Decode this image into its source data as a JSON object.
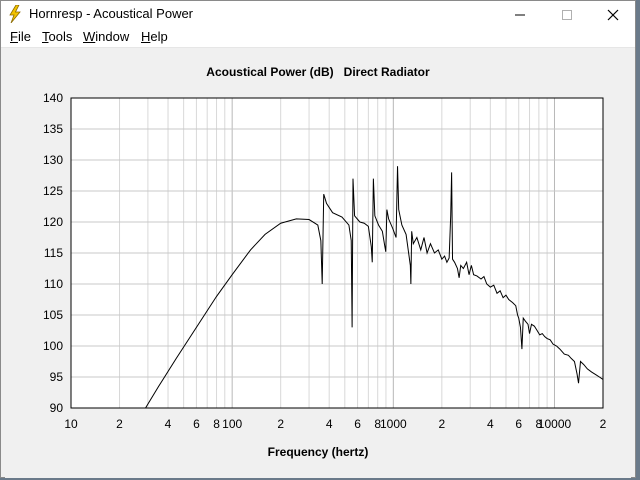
{
  "window": {
    "title": "Hornresp - Acoustical Power"
  },
  "titlebar": {
    "minimize": "—",
    "maximize": "☐",
    "close": "✕"
  },
  "menu": [
    {
      "label": "File",
      "accel": "F",
      "rest": "ile"
    },
    {
      "label": "Tools",
      "accel": "T",
      "rest": "ools"
    },
    {
      "label": "Window",
      "accel": "W",
      "rest": "indow"
    },
    {
      "label": "Help",
      "accel": "H",
      "rest": "elp"
    }
  ],
  "chart_data": {
    "type": "line",
    "title": "Acoustical Power (dB)   Direct Radiator",
    "xlabel": "Frequency (hertz)",
    "ylabel": "",
    "xscale": "log",
    "xlim": [
      10,
      20000
    ],
    "ylim": [
      90,
      140
    ],
    "grid": true,
    "y_ticks": [
      90,
      95,
      100,
      105,
      110,
      115,
      120,
      125,
      130,
      135,
      140
    ],
    "x_tick_labels": [
      {
        "value": 10,
        "label": "10"
      },
      {
        "value": 20,
        "label": "2"
      },
      {
        "value": 40,
        "label": "4"
      },
      {
        "value": 60,
        "label": "6"
      },
      {
        "value": 80,
        "label": "8"
      },
      {
        "value": 100,
        "label": "100"
      },
      {
        "value": 200,
        "label": "2"
      },
      {
        "value": 400,
        "label": "4"
      },
      {
        "value": 600,
        "label": "6"
      },
      {
        "value": 800,
        "label": "8"
      },
      {
        "value": 1000,
        "label": "1000"
      },
      {
        "value": 2000,
        "label": "2"
      },
      {
        "value": 4000,
        "label": "4"
      },
      {
        "value": 6000,
        "label": "6"
      },
      {
        "value": 8000,
        "label": "8"
      },
      {
        "value": 10000,
        "label": "10000"
      },
      {
        "value": 20000,
        "label": "2"
      }
    ],
    "series": [
      {
        "color": "#000000",
        "points": [
          [
            29,
            90
          ],
          [
            35,
            93.5
          ],
          [
            45,
            98
          ],
          [
            60,
            103
          ],
          [
            80,
            108
          ],
          [
            100,
            111.5
          ],
          [
            130,
            115.5
          ],
          [
            160,
            118
          ],
          [
            200,
            119.8
          ],
          [
            250,
            120.5
          ],
          [
            300,
            120.4
          ],
          [
            340,
            119.5
          ],
          [
            355,
            117
          ],
          [
            362,
            110
          ],
          [
            370,
            124.5
          ],
          [
            385,
            123
          ],
          [
            420,
            121.5
          ],
          [
            480,
            120.8
          ],
          [
            530,
            119.5
          ],
          [
            548,
            117
          ],
          [
            555,
            103
          ],
          [
            562,
            127
          ],
          [
            575,
            121
          ],
          [
            620,
            120
          ],
          [
            660,
            119.8
          ],
          [
            700,
            119.3
          ],
          [
            730,
            116
          ],
          [
            740,
            113.5
          ],
          [
            752,
            127
          ],
          [
            768,
            121
          ],
          [
            810,
            119.5
          ],
          [
            855,
            118.5
          ],
          [
            880,
            116.5
          ],
          [
            898,
            115.2
          ],
          [
            912,
            122
          ],
          [
            935,
            120.5
          ],
          [
            990,
            119
          ],
          [
            1040,
            117.5
          ],
          [
            1062,
            129
          ],
          [
            1080,
            122
          ],
          [
            1130,
            119.5
          ],
          [
            1200,
            118
          ],
          [
            1275,
            113
          ],
          [
            1285,
            110
          ],
          [
            1300,
            118.5
          ],
          [
            1330,
            116.5
          ],
          [
            1400,
            117.5
          ],
          [
            1480,
            115.5
          ],
          [
            1550,
            117.5
          ],
          [
            1620,
            115
          ],
          [
            1700,
            116.5
          ],
          [
            1800,
            115
          ],
          [
            1900,
            115.5
          ],
          [
            2000,
            114
          ],
          [
            2080,
            114.5
          ],
          [
            2150,
            113.5
          ],
          [
            2220,
            114.2
          ],
          [
            2270,
            121
          ],
          [
            2300,
            128
          ],
          [
            2330,
            114
          ],
          [
            2400,
            113.5
          ],
          [
            2500,
            112.5
          ],
          [
            2560,
            111
          ],
          [
            2620,
            113
          ],
          [
            2720,
            112.5
          ],
          [
            2850,
            113.5
          ],
          [
            2950,
            111.5
          ],
          [
            3050,
            113
          ],
          [
            3150,
            111.5
          ],
          [
            3300,
            111.3
          ],
          [
            3500,
            110.8
          ],
          [
            3650,
            111.2
          ],
          [
            3800,
            110
          ],
          [
            4000,
            109.5
          ],
          [
            4200,
            109.8
          ],
          [
            4400,
            108.5
          ],
          [
            4600,
            108.9
          ],
          [
            4800,
            107.8
          ],
          [
            5000,
            108.2
          ],
          [
            5200,
            107.5
          ],
          [
            5500,
            107
          ],
          [
            5750,
            106.5
          ],
          [
            5900,
            105
          ],
          [
            6000,
            104.5
          ],
          [
            6150,
            103
          ],
          [
            6280,
            99.5
          ],
          [
            6400,
            104.5
          ],
          [
            6600,
            104
          ],
          [
            6850,
            103.5
          ],
          [
            7000,
            102
          ],
          [
            7200,
            103.5
          ],
          [
            7500,
            103.2
          ],
          [
            7800,
            102.5
          ],
          [
            8100,
            101.8
          ],
          [
            8400,
            102
          ],
          [
            8700,
            101.5
          ],
          [
            9000,
            101.2
          ],
          [
            9400,
            101
          ],
          [
            9800,
            100.3
          ],
          [
            10300,
            100
          ],
          [
            10800,
            99.5
          ],
          [
            11500,
            98.7
          ],
          [
            12200,
            98.5
          ],
          [
            12700,
            98
          ],
          [
            13300,
            97.5
          ],
          [
            13800,
            95.5
          ],
          [
            14100,
            94
          ],
          [
            14500,
            97.5
          ],
          [
            15200,
            97
          ],
          [
            16000,
            96.3
          ],
          [
            17000,
            95.8
          ],
          [
            18000,
            95.4
          ],
          [
            19000,
            95
          ],
          [
            20000,
            94.6
          ]
        ]
      }
    ]
  }
}
